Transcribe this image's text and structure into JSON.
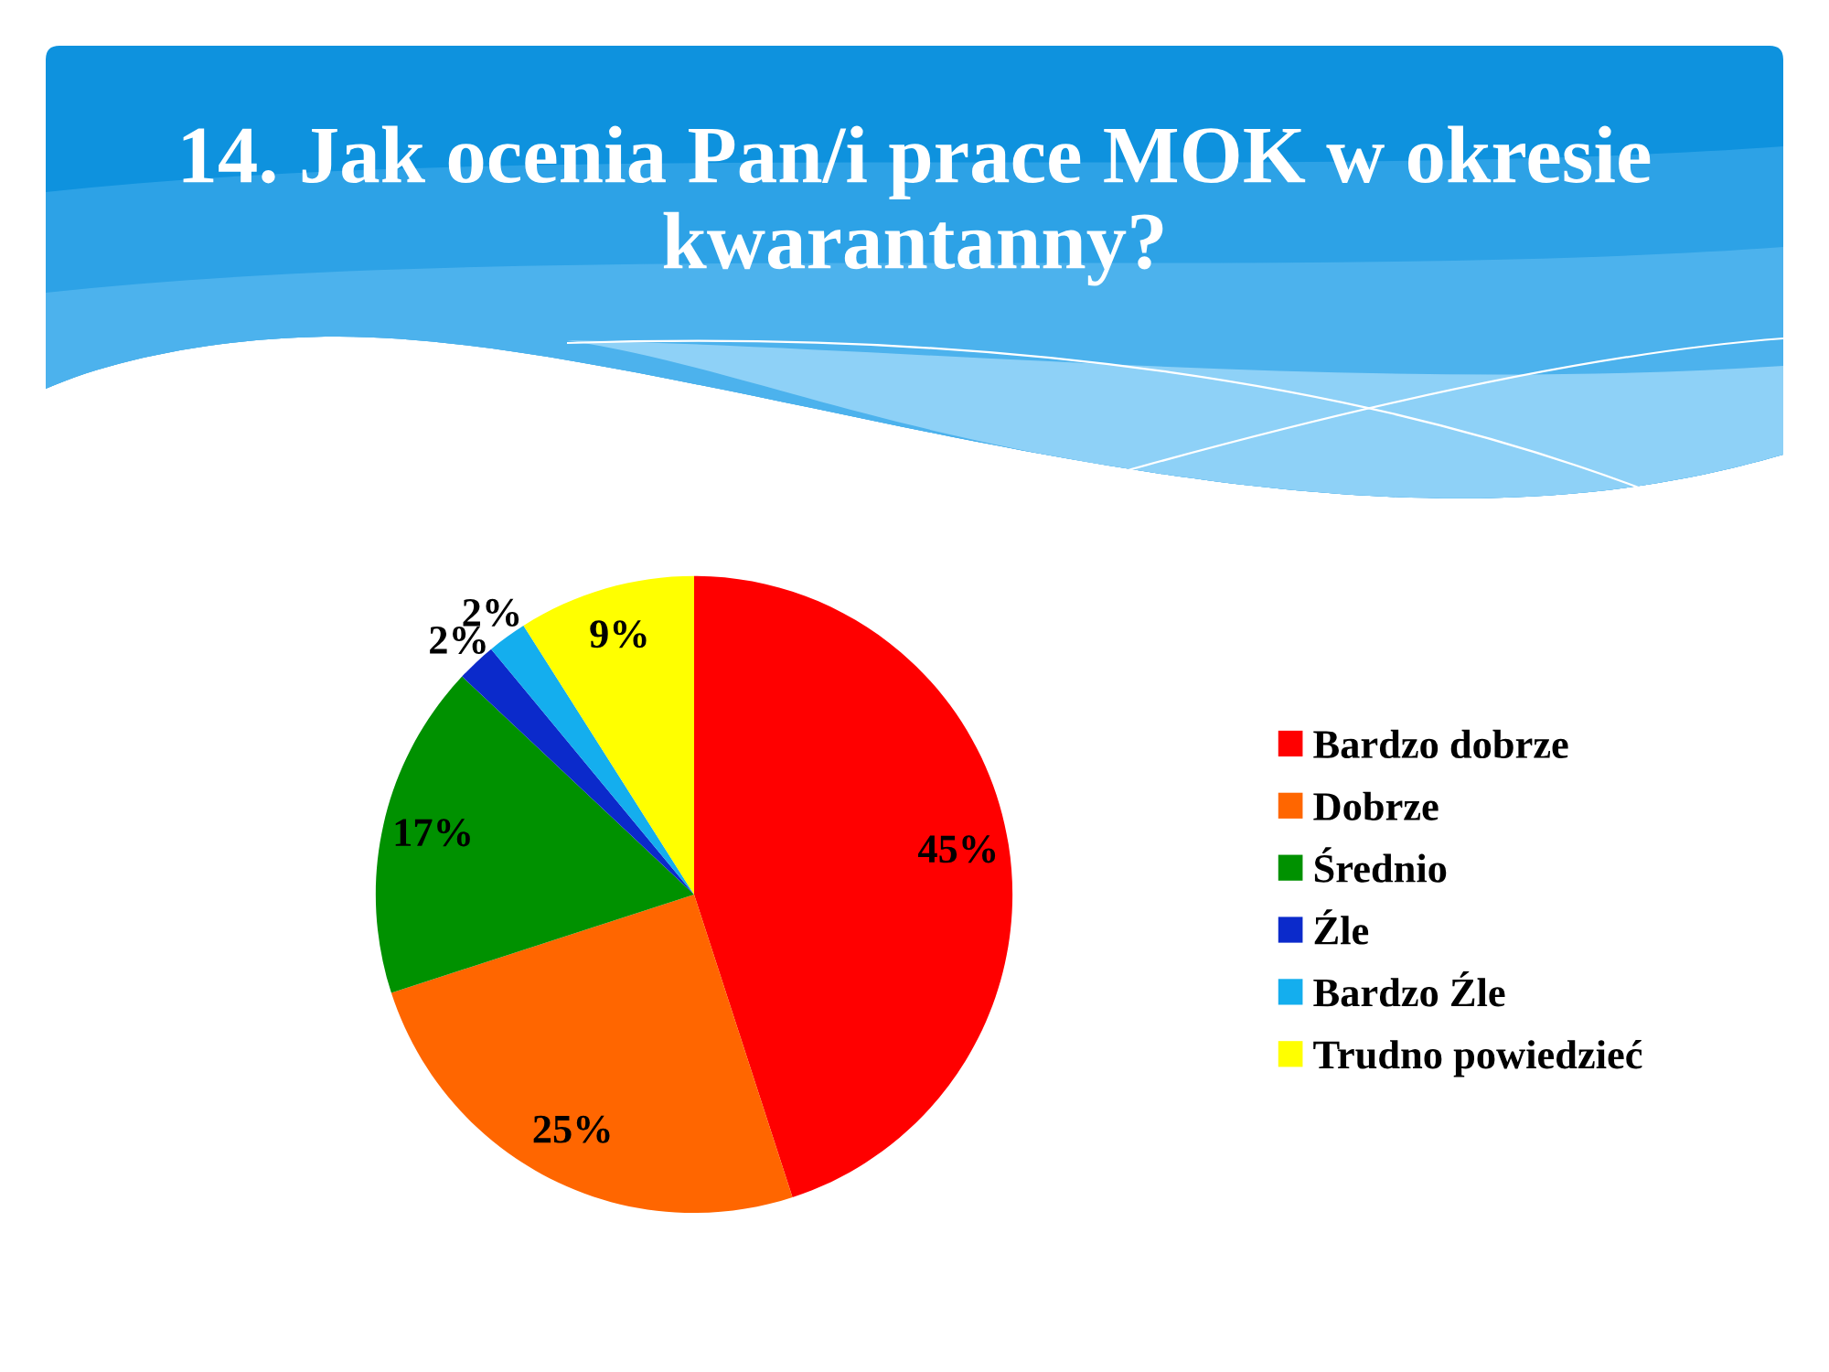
{
  "chart_data": {
    "type": "pie",
    "title": "14. Jak ocenia Pan/i prace MOK w okresie kwarantanny?",
    "categories": [
      "Bardzo dobrze",
      "Dobrze",
      "Średnio",
      "Źle",
      "Bardzo Źle",
      "Trudno powiedzieć"
    ],
    "values": [
      45,
      25,
      17,
      2,
      2,
      9
    ],
    "colors": [
      "#ff0000",
      "#ff6600",
      "#009100",
      "#0b2acb",
      "#14aeee",
      "#ffff00"
    ],
    "value_labels": [
      "45%",
      "25%",
      "17%",
      "2%",
      "2%",
      "9%"
    ],
    "legend": "right"
  }
}
